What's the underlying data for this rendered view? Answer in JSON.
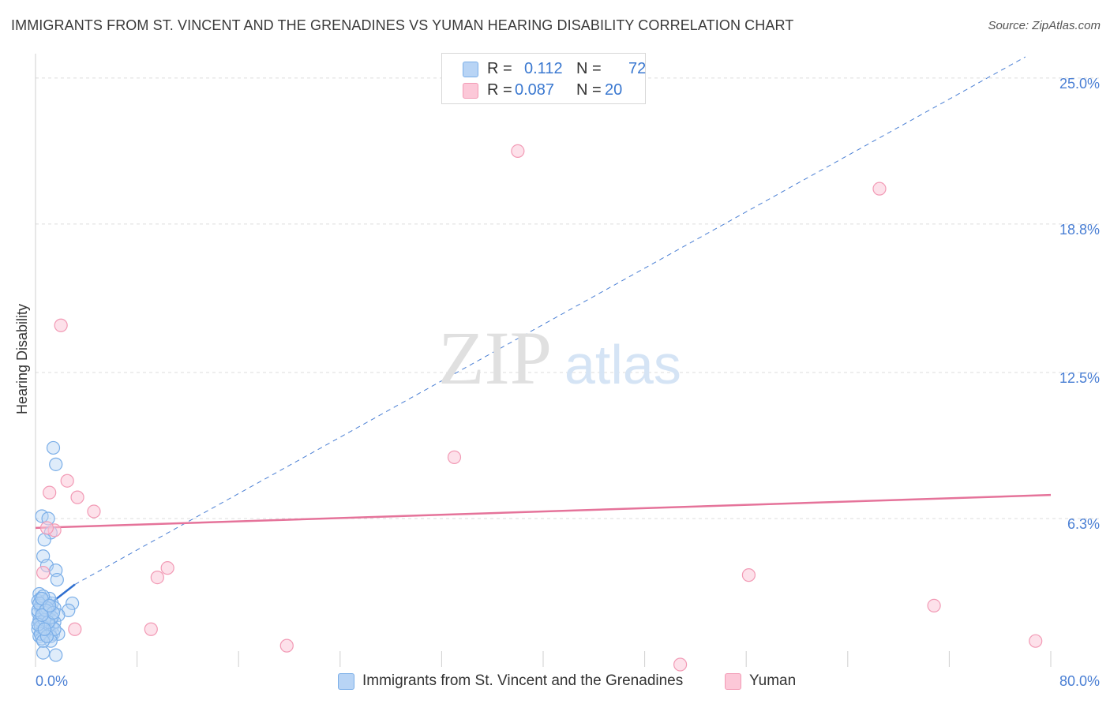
{
  "title": "IMMIGRANTS FROM ST. VINCENT AND THE GRENADINES VS YUMAN HEARING DISABILITY CORRELATION CHART",
  "source": "Source: ZipAtlas.com",
  "watermark": {
    "zip": "ZIP",
    "atlas": "atlas"
  },
  "legend": {
    "r_label": "R =",
    "n_label": "N =",
    "rows": [
      {
        "r": "0.112",
        "n": "72",
        "color": "#b8d4f5",
        "border": "#7aaee8"
      },
      {
        "r": "0.087",
        "n": "20",
        "color": "#fcc8d8",
        "border": "#f29ab5"
      }
    ]
  },
  "bottom_legend": [
    {
      "label": "Immigrants from St. Vincent and the Grenadines",
      "color": "#b8d4f5",
      "border": "#7aaee8"
    },
    {
      "label": "Yuman",
      "color": "#fcc8d8",
      "border": "#f29ab5"
    }
  ],
  "chart_data": {
    "type": "scatter",
    "title": "IMMIGRANTS FROM ST. VINCENT AND THE GRENADINES VS YUMAN HEARING DISABILITY CORRELATION CHART",
    "xlabel": "",
    "ylabel": "Hearing Disability",
    "xlim": [
      0,
      80
    ],
    "ylim": [
      0,
      25.7
    ],
    "x_tick_labels": [
      "0.0%",
      "80.0%"
    ],
    "y_ticks": [
      6.3,
      12.5,
      18.8,
      25.0
    ],
    "y_tick_labels": [
      "6.3%",
      "12.5%",
      "18.8%",
      "25.0%"
    ],
    "grid": true,
    "series": [
      {
        "name": "Immigrants from St. Vincent and the Grenadines",
        "color": "#7aaee8",
        "fill": "#b8d4f5",
        "points": [
          [
            1.4,
            9.3
          ],
          [
            1.6,
            8.6
          ],
          [
            0.5,
            6.4
          ],
          [
            1.0,
            6.3
          ],
          [
            1.2,
            5.7
          ],
          [
            0.7,
            5.4
          ],
          [
            0.6,
            4.7
          ],
          [
            0.9,
            4.3
          ],
          [
            1.6,
            4.1
          ],
          [
            1.7,
            3.7
          ],
          [
            0.3,
            3.1
          ],
          [
            0.4,
            2.9
          ],
          [
            0.2,
            2.8
          ],
          [
            0.5,
            2.7
          ],
          [
            0.8,
            2.8
          ],
          [
            1.3,
            2.7
          ],
          [
            2.9,
            2.7
          ],
          [
            0.4,
            2.5
          ],
          [
            0.6,
            2.5
          ],
          [
            1.1,
            2.4
          ],
          [
            1.5,
            2.5
          ],
          [
            2.6,
            2.4
          ],
          [
            0.2,
            2.3
          ],
          [
            0.9,
            2.2
          ],
          [
            1.8,
            2.2
          ],
          [
            0.5,
            2.1
          ],
          [
            1.2,
            2.0
          ],
          [
            0.3,
            1.9
          ],
          [
            0.8,
            1.9
          ],
          [
            1.5,
            1.9
          ],
          [
            0.4,
            1.8
          ],
          [
            1.0,
            1.8
          ],
          [
            0.6,
            1.7
          ],
          [
            1.3,
            1.7
          ],
          [
            0.2,
            1.6
          ],
          [
            0.9,
            1.6
          ],
          [
            0.5,
            1.5
          ],
          [
            1.1,
            1.5
          ],
          [
            0.7,
            1.4
          ],
          [
            1.4,
            1.4
          ],
          [
            1.8,
            1.4
          ],
          [
            0.3,
            1.3
          ],
          [
            1.2,
            1.3
          ],
          [
            0.6,
            0.6
          ],
          [
            1.6,
            0.5
          ],
          [
            0.4,
            2.6
          ],
          [
            1.0,
            2.6
          ],
          [
            0.7,
            2.3
          ],
          [
            0.3,
            2.0
          ],
          [
            1.3,
            2.1
          ],
          [
            0.8,
            1.5
          ],
          [
            0.5,
            1.2
          ],
          [
            0.2,
            2.4
          ],
          [
            1.1,
            2.9
          ],
          [
            0.6,
            3.0
          ],
          [
            0.9,
            2.5
          ],
          [
            0.4,
            1.7
          ],
          [
            1.5,
            1.6
          ],
          [
            0.7,
            2.0
          ],
          [
            0.3,
            2.7
          ],
          [
            1.2,
            1.1
          ],
          [
            0.5,
            2.9
          ],
          [
            0.8,
            2.4
          ],
          [
            0.4,
            1.4
          ],
          [
            1.0,
            1.9
          ],
          [
            0.6,
            1.1
          ],
          [
            0.2,
            1.8
          ],
          [
            1.4,
            2.3
          ],
          [
            0.9,
            1.3
          ],
          [
            0.5,
            2.2
          ],
          [
            0.7,
            1.6
          ],
          [
            1.1,
            2.6
          ]
        ],
        "trend": {
          "x0": 0.0,
          "y0": 2.2,
          "x1": 3.1,
          "y1": 3.5,
          "dashed_to_x": 78,
          "dashed_to_y": 25.9
        }
      },
      {
        "name": "Yuman",
        "color": "#f29ab5",
        "fill": "#fcc8d8",
        "points": [
          [
            2.0,
            14.5
          ],
          [
            38.0,
            21.9
          ],
          [
            66.5,
            20.3
          ],
          [
            33.0,
            8.9
          ],
          [
            2.5,
            7.9
          ],
          [
            1.1,
            7.4
          ],
          [
            3.3,
            7.2
          ],
          [
            4.6,
            6.6
          ],
          [
            1.5,
            5.8
          ],
          [
            10.4,
            4.2
          ],
          [
            9.6,
            3.8
          ],
          [
            56.2,
            3.9
          ],
          [
            0.6,
            4.0
          ],
          [
            70.8,
            2.6
          ],
          [
            3.1,
            1.6
          ],
          [
            9.1,
            1.6
          ],
          [
            19.8,
            0.9
          ],
          [
            78.8,
            1.1
          ],
          [
            50.8,
            0.1
          ],
          [
            0.9,
            5.9
          ]
        ],
        "trend": {
          "x0": 0.0,
          "y0": 5.9,
          "x1": 80.0,
          "y1": 7.3
        }
      }
    ]
  }
}
